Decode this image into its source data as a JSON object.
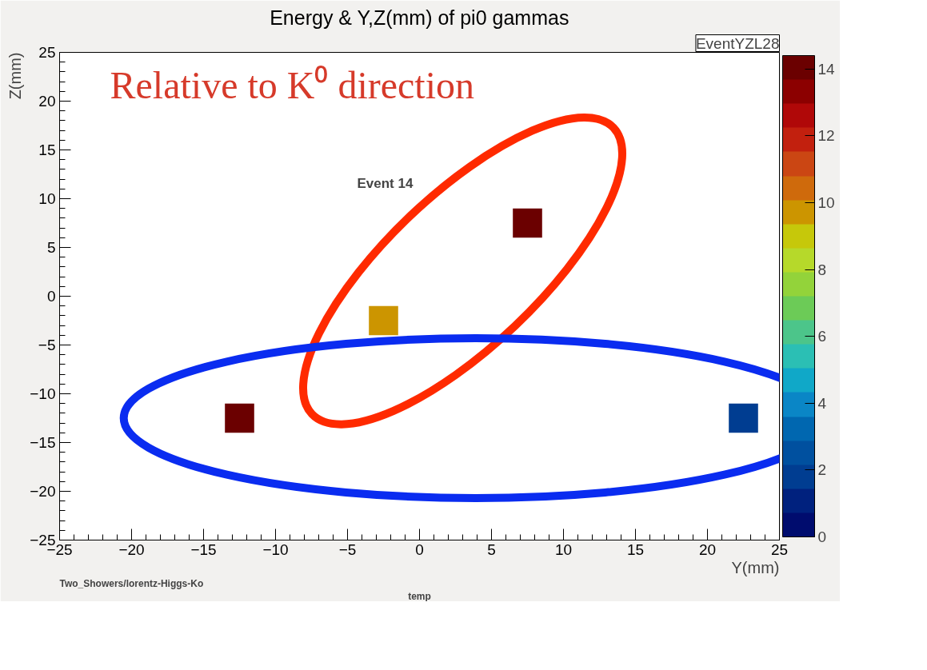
{
  "chart_data": {
    "type": "scatter",
    "title": "Energy & Y,Z(mm) of pi0 gammas",
    "xlabel": "Y(mm)",
    "ylabel": "Z(mm)",
    "marker": "square",
    "x": [
      -12.5,
      -2.5,
      7.5,
      22.5
    ],
    "values": [
      -12.5,
      -2.5,
      7.5,
      -12.5
    ],
    "cvalues": [
      14,
      10,
      14,
      2
    ],
    "xlim": [
      -25,
      25
    ],
    "ylim": [
      -25,
      25
    ],
    "xticks": [
      {
        "value": -25,
        "label": "−25"
      },
      {
        "value": -20,
        "label": "−20"
      },
      {
        "value": -15,
        "label": "−15"
      },
      {
        "value": -10,
        "label": "−10"
      },
      {
        "value": -5,
        "label": "−5"
      },
      0,
      5,
      10,
      15,
      20,
      25
    ],
    "yticks": [
      {
        "value": -25,
        "label": "−25"
      },
      {
        "value": -20,
        "label": "−20"
      },
      {
        "value": -15,
        "label": "−15"
      },
      {
        "value": -10,
        "label": "−10"
      },
      {
        "value": -5,
        "label": "−5"
      },
      0,
      5,
      10,
      15,
      20,
      25
    ],
    "clim": [
      0,
      14.4
    ],
    "cticks": [
      0,
      2,
      4,
      6,
      8,
      10,
      12,
      14
    ],
    "grid": false,
    "annotations": [
      "Relative to K⁰ direction",
      "Event    14",
      "EventYZL28",
      "Two_Showers/lorentz-Higgs-Ko",
      "temp"
    ]
  }
}
